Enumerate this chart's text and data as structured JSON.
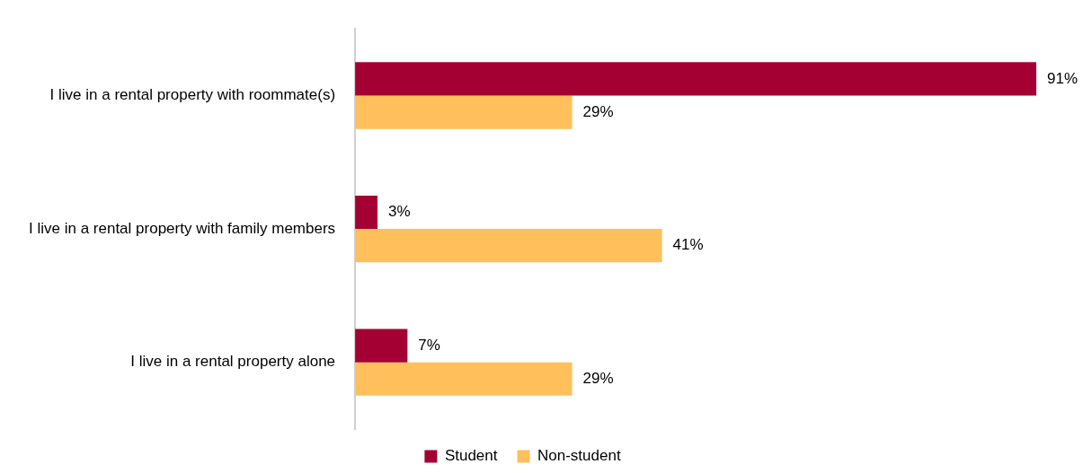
{
  "chart_data": {
    "type": "bar",
    "orientation": "horizontal",
    "categories": [
      "I live in a rental property with roommate(s)",
      "I live in a rental property with family members",
      "I live in a rental property alone"
    ],
    "series": [
      {
        "name": "Student",
        "color": "#a50034",
        "values": [
          91,
          3,
          7
        ],
        "value_labels": [
          "91%",
          "3%",
          "7%"
        ]
      },
      {
        "name": "Non-student",
        "color": "#ffc05c",
        "values": [
          29,
          41,
          29
        ],
        "value_labels": [
          "29%",
          "41%",
          "29%"
        ]
      }
    ],
    "legend": "bottom",
    "grid": false
  }
}
